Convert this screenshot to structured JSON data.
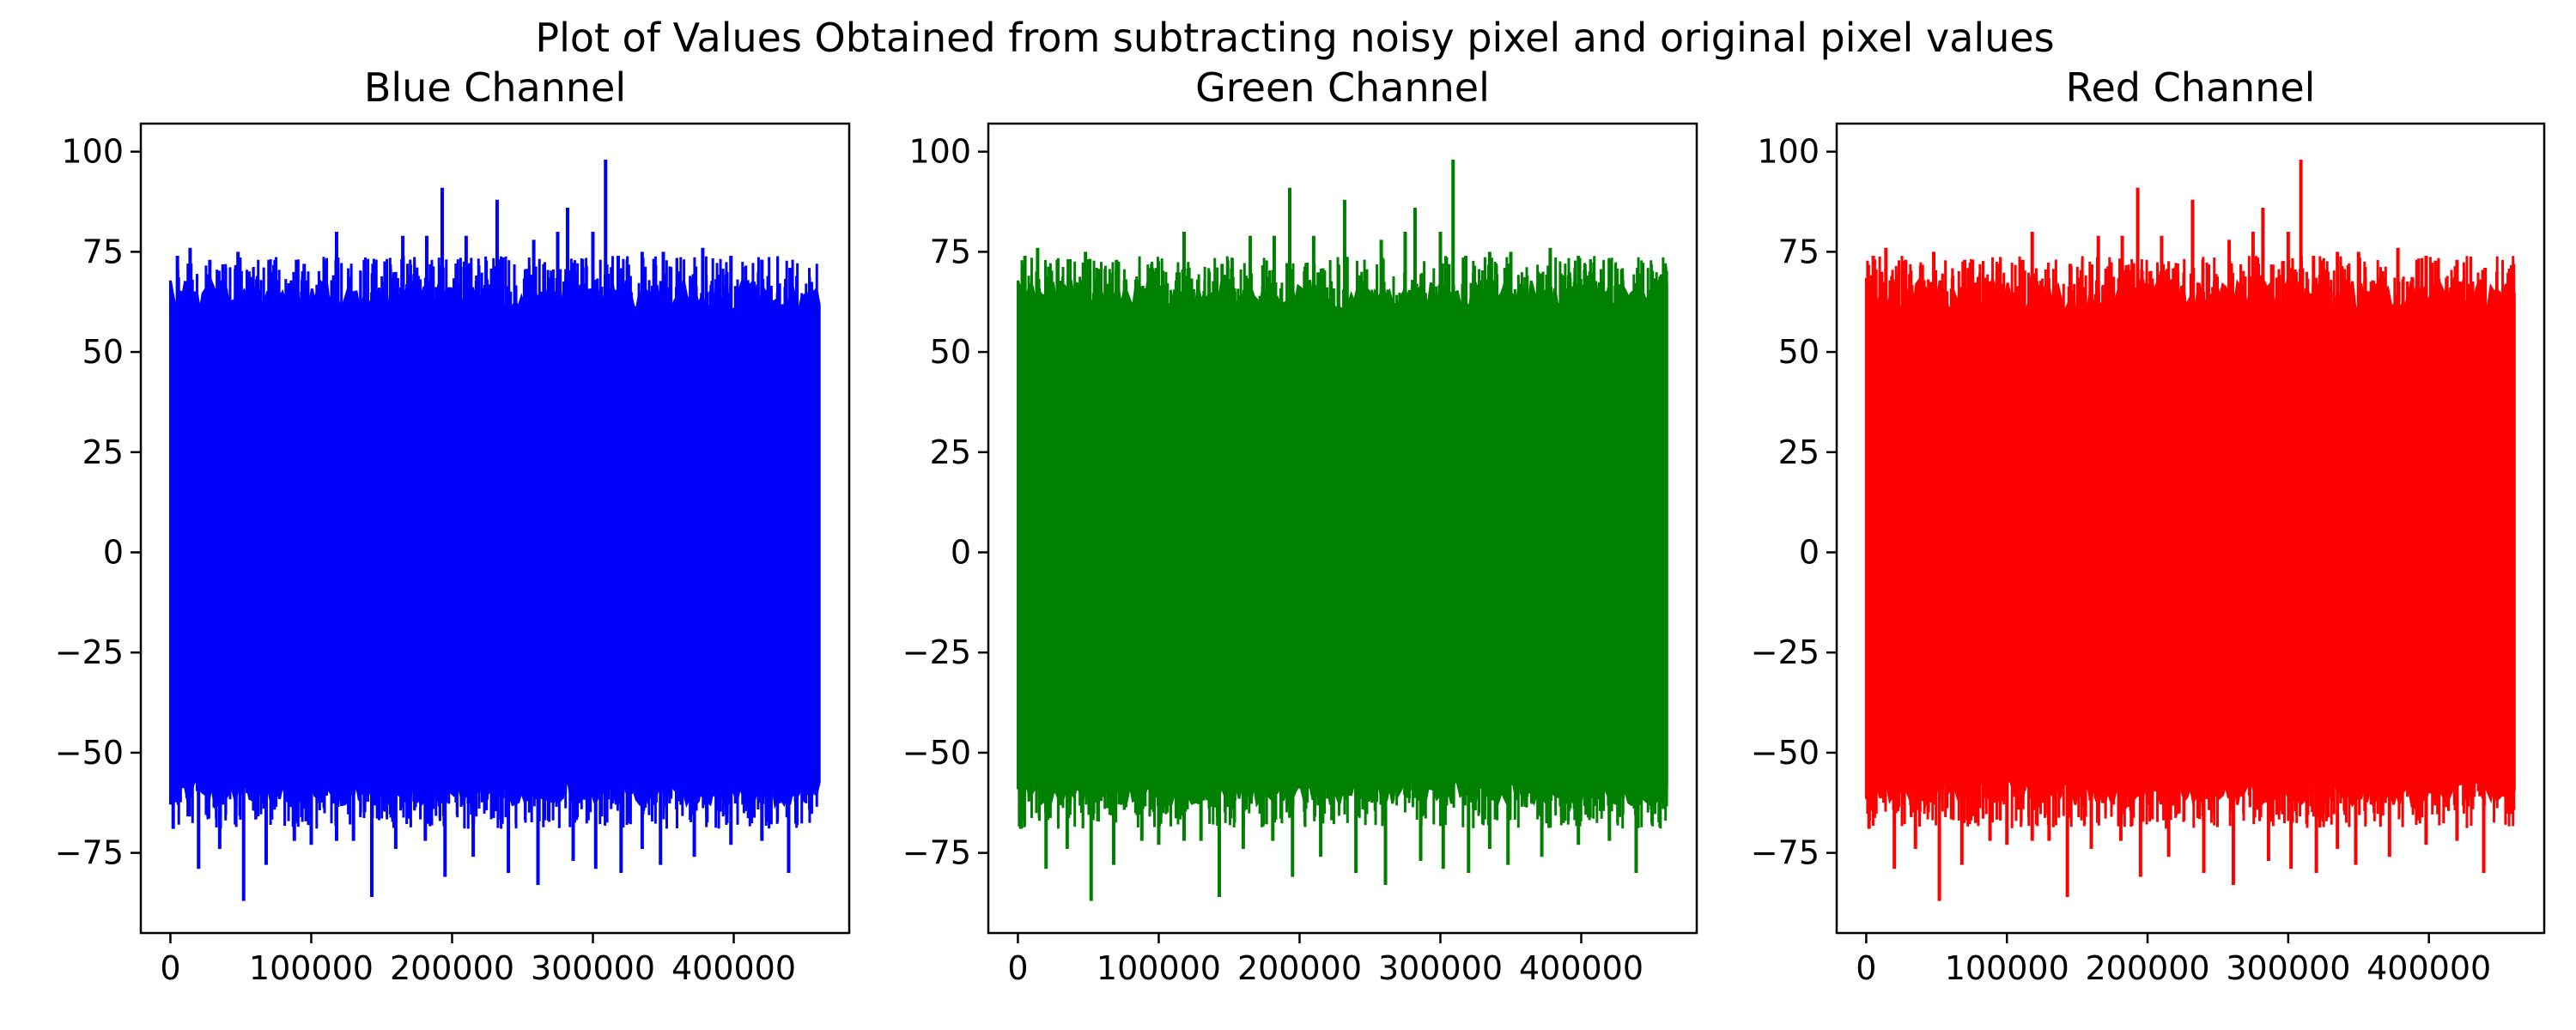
{
  "title": "Plot of Values Obtained from subtracting noisy pixel and original pixel values",
  "chart_data": [
    {
      "type": "line",
      "title": "Blue Channel",
      "xlabel": "",
      "ylabel": "",
      "color": "#0000ff",
      "xlim": [
        -21000,
        482000
      ],
      "ylim": [
        -95,
        107
      ],
      "xticks": [
        0,
        100000,
        200000,
        300000,
        400000
      ],
      "xtick_labels": [
        "0",
        "100000",
        "200000",
        "300000",
        "400000"
      ],
      "yticks": [
        -75,
        -50,
        -25,
        0,
        25,
        50,
        75,
        100
      ],
      "ytick_labels": [
        "−75",
        "−50",
        "−25",
        "0",
        "25",
        "50",
        "75",
        "100"
      ],
      "grid": false,
      "series": [
        {
          "n_points": 460800,
          "x_range": [
            0,
            460800
          ],
          "typical_range": [
            -63,
            68
          ],
          "positive_peaks": [
            [
              5000,
              74
            ],
            [
              14000,
              76
            ],
            [
              28000,
              73
            ],
            [
              48000,
              75
            ],
            [
              70000,
              73
            ],
            [
              95000,
              72
            ],
            [
              118000,
              80
            ],
            [
              145000,
              72
            ],
            [
              165000,
              79
            ],
            [
              182000,
              79
            ],
            [
              193000,
              91
            ],
            [
              210000,
              79
            ],
            [
              232000,
              88
            ],
            [
              258000,
              78
            ],
            [
              275000,
              80
            ],
            [
              282000,
              86
            ],
            [
              300000,
              80
            ],
            [
              309000,
              98
            ],
            [
              318000,
              74
            ],
            [
              335000,
              75
            ],
            [
              350000,
              75
            ],
            [
              378000,
              76
            ],
            [
              398000,
              74
            ],
            [
              420000,
              73
            ],
            [
              440000,
              71
            ],
            [
              455000,
              63
            ]
          ],
          "negative_peaks": [
            [
              2000,
              -69
            ],
            [
              20000,
              -79
            ],
            [
              35000,
              -74
            ],
            [
              52000,
              -87
            ],
            [
              68000,
              -78
            ],
            [
              88000,
              -72
            ],
            [
              100000,
              -73
            ],
            [
              118000,
              -72
            ],
            [
              130000,
              -72
            ],
            [
              143000,
              -86
            ],
            [
              160000,
              -74
            ],
            [
              181000,
              -72
            ],
            [
              195000,
              -81
            ],
            [
              215000,
              -76
            ],
            [
              240000,
              -80
            ],
            [
              261000,
              -83
            ],
            [
              286000,
              -77
            ],
            [
              302000,
              -79
            ],
            [
              320000,
              -80
            ],
            [
              335000,
              -74
            ],
            [
              348000,
              -78
            ],
            [
              372000,
              -76
            ],
            [
              398000,
              -73
            ],
            [
              420000,
              -72
            ],
            [
              439000,
              -80
            ],
            [
              458000,
              -58
            ]
          ]
        }
      ]
    },
    {
      "type": "line",
      "title": "Green Channel",
      "xlabel": "",
      "ylabel": "",
      "color": "#008000",
      "xlim": [
        -21000,
        482000
      ],
      "ylim": [
        -95,
        107
      ],
      "xticks": [
        0,
        100000,
        200000,
        300000,
        400000
      ],
      "xtick_labels": [
        "0",
        "100000",
        "200000",
        "300000",
        "400000"
      ],
      "yticks": [
        -75,
        -50,
        -25,
        0,
        25,
        50,
        75,
        100
      ],
      "ytick_labels": [
        "−75",
        "−50",
        "−25",
        "0",
        "25",
        "50",
        "75",
        "100"
      ],
      "grid": false,
      "series": [
        {
          "n_points": 460800,
          "x_range": [
            0,
            460800
          ],
          "typical_range": [
            -63,
            68
          ],
          "positive_peaks": [
            [
              5000,
              74
            ],
            [
              14000,
              76
            ],
            [
              28000,
              73
            ],
            [
              48000,
              75
            ],
            [
              70000,
              73
            ],
            [
              95000,
              72
            ],
            [
              118000,
              80
            ],
            [
              145000,
              72
            ],
            [
              165000,
              79
            ],
            [
              182000,
              79
            ],
            [
              193000,
              91
            ],
            [
              210000,
              79
            ],
            [
              232000,
              88
            ],
            [
              258000,
              78
            ],
            [
              275000,
              80
            ],
            [
              282000,
              86
            ],
            [
              300000,
              80
            ],
            [
              309000,
              98
            ],
            [
              318000,
              74
            ],
            [
              335000,
              75
            ],
            [
              350000,
              75
            ],
            [
              378000,
              76
            ],
            [
              398000,
              74
            ],
            [
              420000,
              73
            ],
            [
              440000,
              71
            ],
            [
              455000,
              63
            ]
          ],
          "negative_peaks": [
            [
              2000,
              -69
            ],
            [
              20000,
              -79
            ],
            [
              35000,
              -74
            ],
            [
              52000,
              -87
            ],
            [
              68000,
              -78
            ],
            [
              88000,
              -72
            ],
            [
              100000,
              -73
            ],
            [
              118000,
              -72
            ],
            [
              130000,
              -72
            ],
            [
              143000,
              -86
            ],
            [
              160000,
              -74
            ],
            [
              181000,
              -72
            ],
            [
              195000,
              -81
            ],
            [
              215000,
              -76
            ],
            [
              240000,
              -80
            ],
            [
              261000,
              -83
            ],
            [
              286000,
              -77
            ],
            [
              302000,
              -79
            ],
            [
              320000,
              -80
            ],
            [
              335000,
              -74
            ],
            [
              348000,
              -78
            ],
            [
              372000,
              -76
            ],
            [
              398000,
              -73
            ],
            [
              420000,
              -72
            ],
            [
              439000,
              -80
            ],
            [
              458000,
              -58
            ]
          ]
        }
      ]
    },
    {
      "type": "line",
      "title": "Red Channel",
      "xlabel": "",
      "ylabel": "",
      "color": "#ff0000",
      "xlim": [
        -21000,
        482000
      ],
      "ylim": [
        -95,
        107
      ],
      "xticks": [
        0,
        100000,
        200000,
        300000,
        400000
      ],
      "xtick_labels": [
        "0",
        "100000",
        "200000",
        "300000",
        "400000"
      ],
      "yticks": [
        -75,
        -50,
        -25,
        0,
        25,
        50,
        75,
        100
      ],
      "ytick_labels": [
        "−75",
        "−50",
        "−25",
        "0",
        "25",
        "50",
        "75",
        "100"
      ],
      "grid": false,
      "series": [
        {
          "n_points": 460800,
          "x_range": [
            0,
            460800
          ],
          "typical_range": [
            -63,
            68
          ],
          "positive_peaks": [
            [
              5000,
              74
            ],
            [
              14000,
              76
            ],
            [
              28000,
              73
            ],
            [
              48000,
              75
            ],
            [
              70000,
              73
            ],
            [
              95000,
              72
            ],
            [
              118000,
              80
            ],
            [
              145000,
              72
            ],
            [
              165000,
              79
            ],
            [
              182000,
              79
            ],
            [
              193000,
              91
            ],
            [
              210000,
              79
            ],
            [
              232000,
              88
            ],
            [
              258000,
              78
            ],
            [
              275000,
              80
            ],
            [
              282000,
              86
            ],
            [
              300000,
              80
            ],
            [
              309000,
              98
            ],
            [
              318000,
              74
            ],
            [
              335000,
              75
            ],
            [
              350000,
              75
            ],
            [
              378000,
              76
            ],
            [
              398000,
              74
            ],
            [
              420000,
              73
            ],
            [
              440000,
              71
            ],
            [
              455000,
              63
            ]
          ],
          "negative_peaks": [
            [
              2000,
              -69
            ],
            [
              20000,
              -79
            ],
            [
              35000,
              -74
            ],
            [
              52000,
              -87
            ],
            [
              68000,
              -78
            ],
            [
              88000,
              -72
            ],
            [
              100000,
              -73
            ],
            [
              118000,
              -72
            ],
            [
              130000,
              -72
            ],
            [
              143000,
              -86
            ],
            [
              160000,
              -74
            ],
            [
              181000,
              -72
            ],
            [
              195000,
              -81
            ],
            [
              215000,
              -76
            ],
            [
              240000,
              -80
            ],
            [
              261000,
              -83
            ],
            [
              286000,
              -77
            ],
            [
              302000,
              -79
            ],
            [
              320000,
              -80
            ],
            [
              335000,
              -74
            ],
            [
              348000,
              -78
            ],
            [
              372000,
              -76
            ],
            [
              398000,
              -73
            ],
            [
              420000,
              -72
            ],
            [
              439000,
              -80
            ],
            [
              458000,
              -58
            ]
          ]
        }
      ]
    }
  ]
}
